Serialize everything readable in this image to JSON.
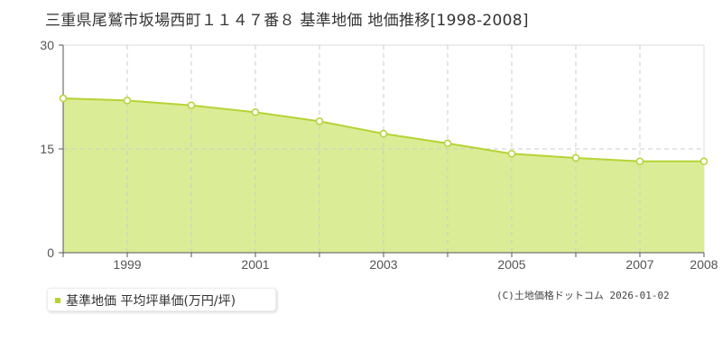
{
  "title": "三重県尾鷲市坂場西町１１４７番８ 基準地価 地価推移[1998-2008]",
  "legend": {
    "label": "基準地価 平均坪単価(万円/坪)",
    "color": "#b5d334"
  },
  "credit": "(C)土地価格ドットコム 2026-01-02",
  "colors": {
    "fill": "#dbec96",
    "line": "#b5d334",
    "grid": "#cccccc",
    "axis": "#555555"
  },
  "chart_data": {
    "type": "area",
    "title": "三重県尾鷲市坂場西町１１４７番８ 基準地価 地価推移[1998-2008]",
    "xlabel": "",
    "ylabel": "",
    "x": [
      1998,
      1999,
      2000,
      2001,
      2002,
      2003,
      2004,
      2005,
      2006,
      2007,
      2008
    ],
    "series": [
      {
        "name": "基準地価 平均坪単価(万円/坪)",
        "values": [
          22.3,
          22.0,
          21.3,
          20.3,
          19.0,
          17.2,
          15.8,
          14.3,
          13.7,
          13.2,
          13.2
        ]
      }
    ],
    "x_tick_labels": [
      "1999",
      "2001",
      "2003",
      "2005",
      "2007",
      "2008"
    ],
    "y_ticks": [
      0,
      15,
      30
    ],
    "ylim": [
      0,
      30
    ],
    "xlim": [
      1998,
      2008
    ],
    "grid": true,
    "legend_position": "bottom-left"
  }
}
